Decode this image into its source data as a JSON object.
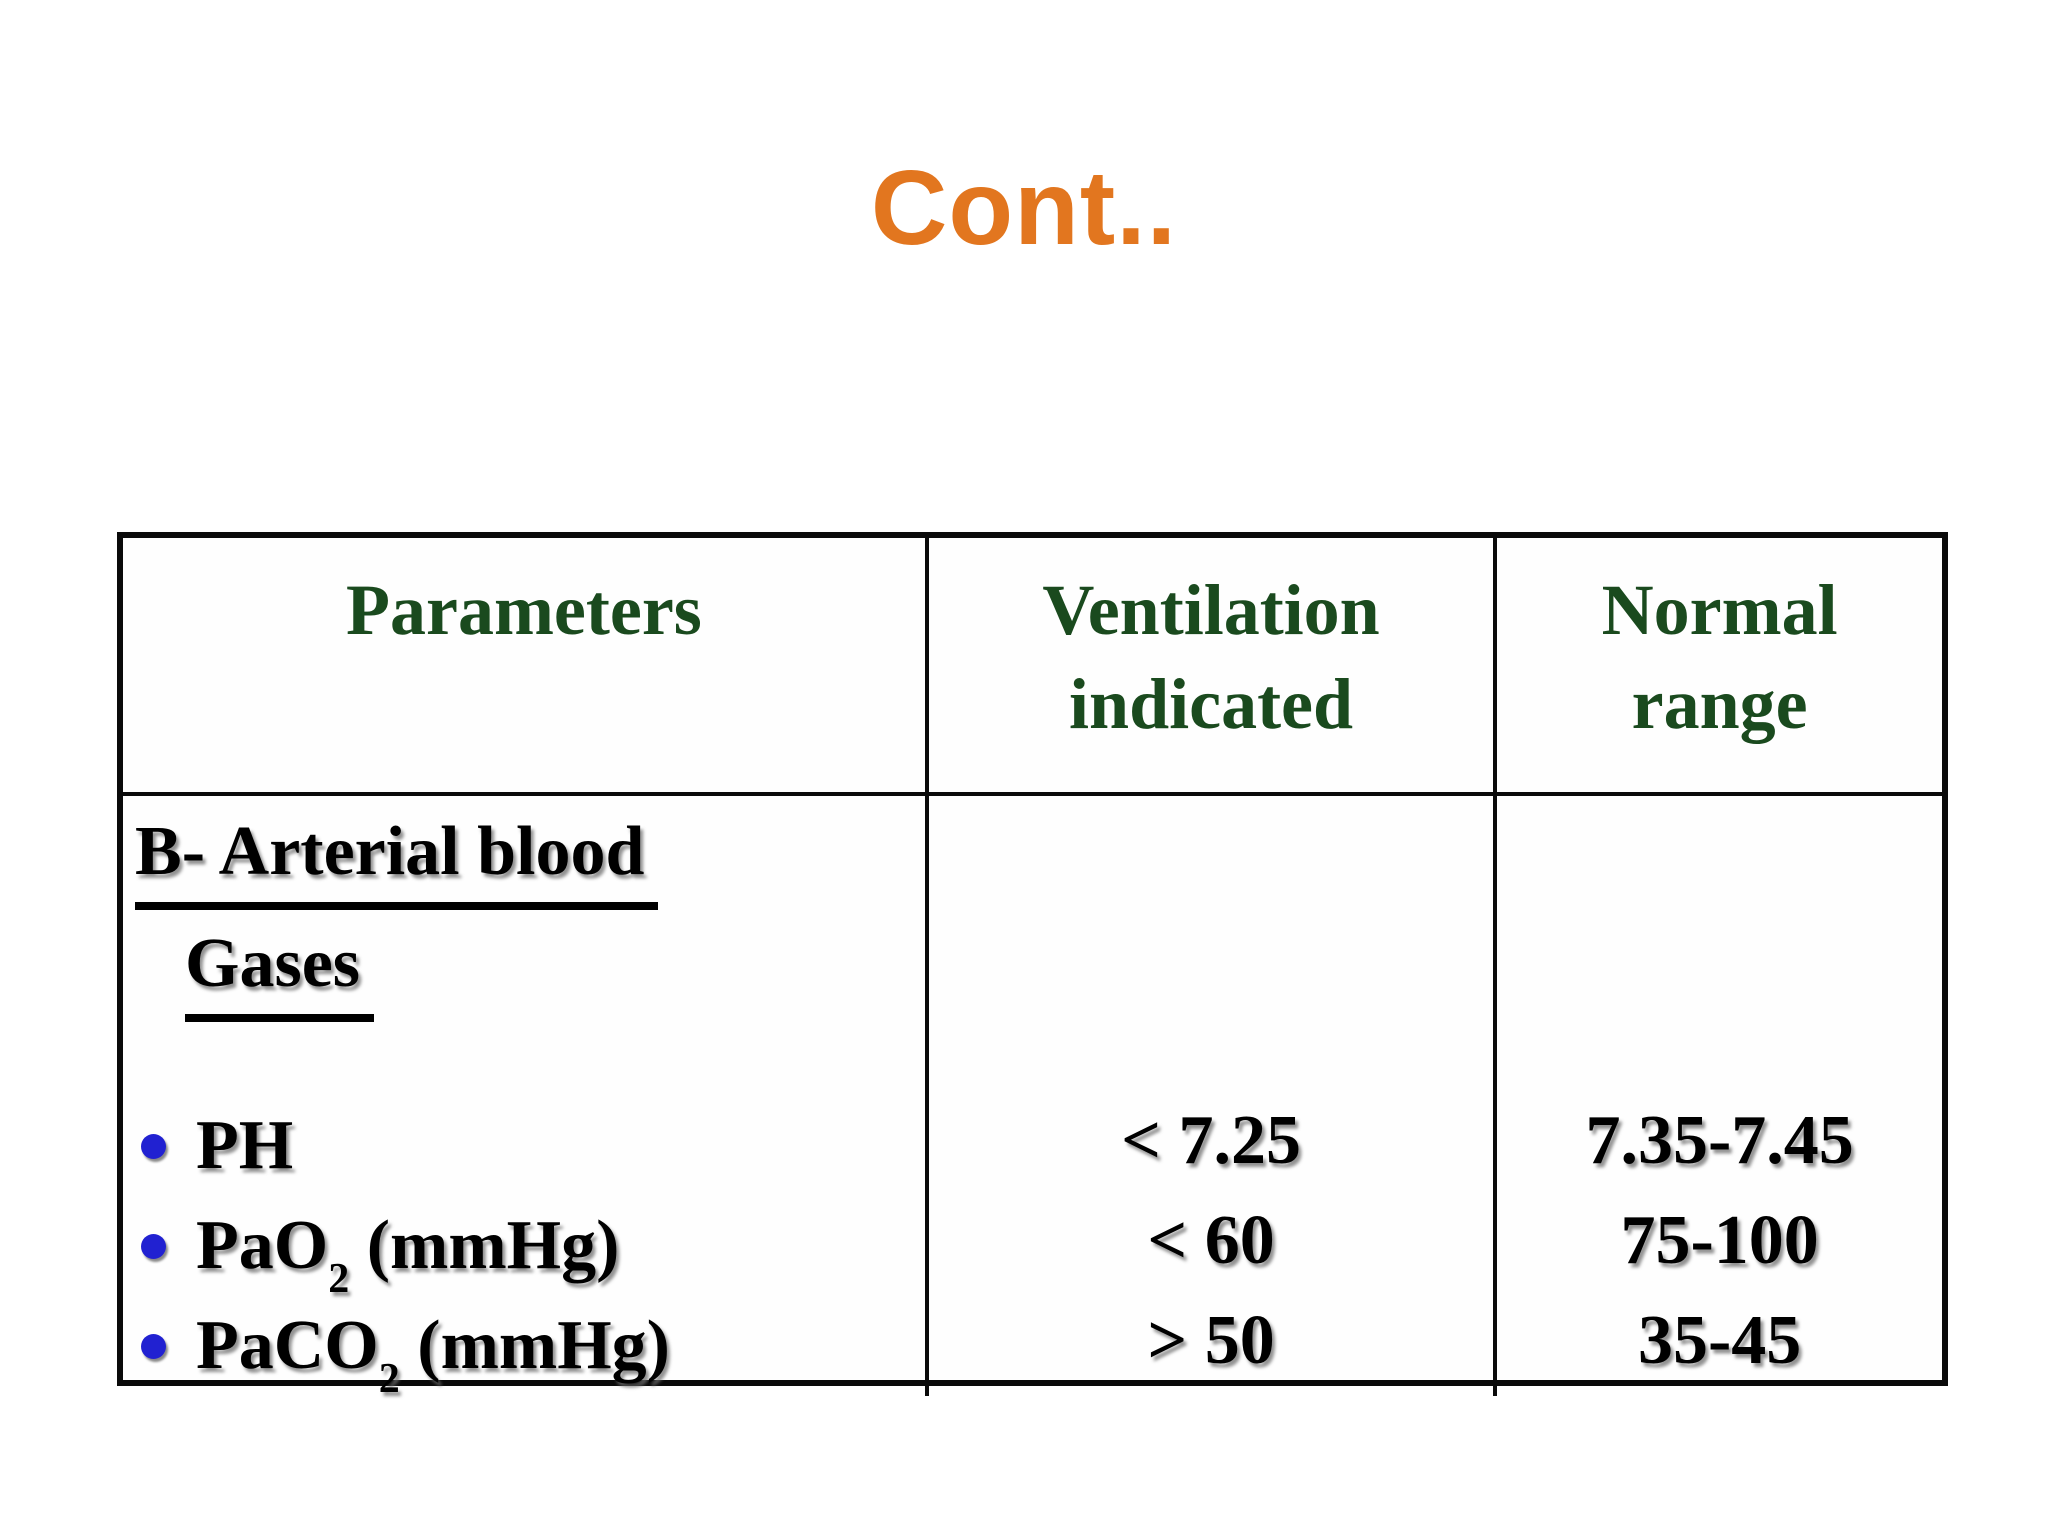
{
  "slide": {
    "title": "Cont..",
    "title_color": "#E2761F",
    "background_color": "#FFFFFF"
  },
  "table": {
    "header_color": "#1A4A1E",
    "border_color": "#0A0A0A",
    "bullet_color": "#2121D1",
    "headers": [
      {
        "label": "Parameters"
      },
      {
        "label": "Ventilation indicated"
      },
      {
        "label": "Normal range"
      }
    ],
    "section": {
      "line1": "B- Arterial blood",
      "line2": "Gases"
    },
    "rows": [
      {
        "param_pre": "PH",
        "param_sub": "",
        "param_post": "",
        "ventilation": "< 7.25",
        "normal": "7.35-7.45"
      },
      {
        "param_pre": "PaO",
        "param_sub": "2",
        "param_post": " (mmHg)",
        "ventilation": "< 60",
        "normal": "75-100"
      },
      {
        "param_pre": "PaCO",
        "param_sub": "2",
        "param_post": " (mmHg)",
        "ventilation": "> 50",
        "normal": "35-45"
      }
    ]
  }
}
